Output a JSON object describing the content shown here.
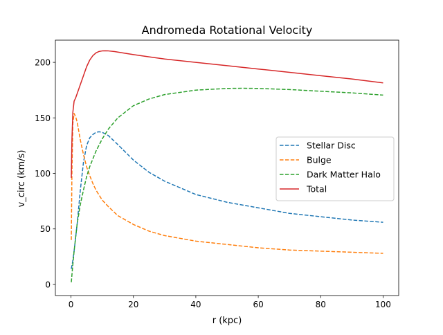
{
  "chart_data": {
    "type": "line",
    "title": "Andromeda Rotational Velocity",
    "xlabel": "r (kpc)",
    "ylabel": "v_circ (km/s)",
    "xlim": [
      -5,
      105
    ],
    "ylim": [
      -10,
      220
    ],
    "xticks": [
      0,
      20,
      40,
      60,
      80,
      100
    ],
    "yticks": [
      0,
      50,
      100,
      150,
      200
    ],
    "grid": false,
    "legend_position": "center-right",
    "series": [
      {
        "name": "Stellar Disc",
        "color": "#1f77b4",
        "style": "dashed",
        "x": [
          0.1,
          0.5,
          1,
          2,
          3,
          4,
          5,
          6,
          7,
          8,
          9,
          10,
          12,
          15,
          20,
          25,
          30,
          40,
          50,
          60,
          70,
          80,
          90,
          100
        ],
        "y": [
          14,
          20,
          30,
          55,
          85,
          110,
          125,
          132,
          135,
          137,
          137.5,
          137,
          134,
          126,
          112,
          101,
          93,
          81,
          74,
          69,
          64,
          61,
          58,
          56
        ]
      },
      {
        "name": "Bulge",
        "color": "#ff7f0e",
        "style": "dashed",
        "x": [
          0.1,
          0.3,
          0.6,
          1,
          1.5,
          2,
          3,
          4,
          5,
          6,
          7,
          8,
          10,
          12,
          15,
          20,
          25,
          30,
          40,
          50,
          60,
          70,
          80,
          90,
          100
        ],
        "y": [
          40,
          100,
          145,
          154,
          151,
          146,
          130,
          117,
          106,
          98,
          91,
          85,
          76,
          70,
          62,
          54,
          48,
          44,
          39,
          36,
          33,
          31,
          30,
          29,
          28
        ]
      },
      {
        "name": "Dark Matter Halo",
        "color": "#2ca02c",
        "style": "dashed",
        "x": [
          0.1,
          0.5,
          1,
          2,
          3,
          4,
          5,
          6,
          8,
          10,
          12,
          15,
          20,
          25,
          30,
          40,
          50,
          55,
          60,
          70,
          80,
          90,
          100
        ],
        "y": [
          2,
          15,
          30,
          55,
          72,
          85,
          97,
          106,
          120,
          131,
          140,
          150,
          161,
          167,
          171,
          175,
          176.5,
          176.7,
          176.5,
          175.5,
          174,
          172.5,
          170.5
        ]
      },
      {
        "name": "Total",
        "color": "#d62728",
        "style": "solid",
        "x": [
          0.1,
          0.3,
          0.6,
          1,
          1.5,
          2,
          3,
          4,
          5,
          6,
          7,
          8,
          9,
          10,
          11,
          12,
          14,
          16,
          20,
          25,
          30,
          40,
          50,
          60,
          70,
          80,
          90,
          100
        ],
        "y": [
          96,
          130,
          155,
          165,
          168,
          172,
          180,
          188,
          196,
          202,
          206,
          208.5,
          209.8,
          210.3,
          210.4,
          210.3,
          209.7,
          208.8,
          207,
          205,
          203,
          200,
          197,
          194,
          191,
          188,
          185,
          181.5
        ]
      }
    ]
  }
}
